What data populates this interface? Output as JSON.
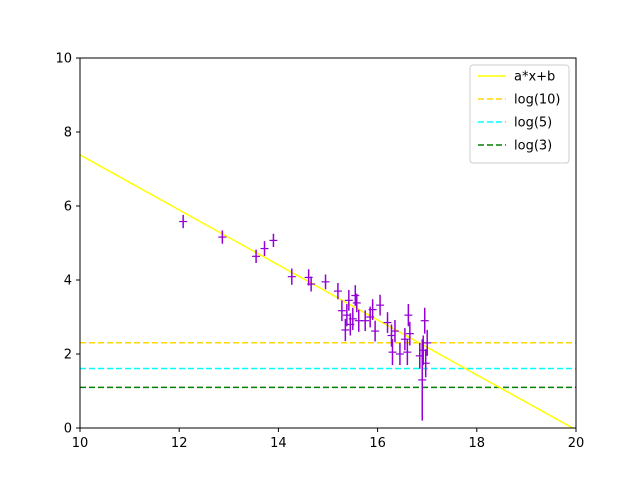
{
  "chart_data": {
    "type": "scatter",
    "title": "",
    "xlabel": "",
    "ylabel": "",
    "xlim": [
      10,
      20
    ],
    "ylim": [
      0,
      10
    ],
    "xticks": [
      "10",
      "12",
      "14",
      "16",
      "18",
      "20"
    ],
    "yticks": [
      "0",
      "2",
      "4",
      "6",
      "8",
      "10"
    ],
    "grid": false,
    "legend_position": "top-right",
    "fit_line": {
      "name": "a*x+b",
      "color": "#ffff00",
      "x": [
        10,
        20
      ],
      "y": [
        7.38,
        -0.05
      ]
    },
    "hlines": [
      {
        "name": "log(10)",
        "value": 2.303,
        "color": "#ffd700"
      },
      {
        "name": "log(5)",
        "value": 1.609,
        "color": "#00ffff"
      },
      {
        "name": "log(3)",
        "value": 1.099,
        "color": "#008000"
      }
    ],
    "points_color": "#9400d3",
    "points": [
      {
        "x": 12.08,
        "y": 5.58,
        "yerr": 0.18
      },
      {
        "x": 12.87,
        "y": 5.16,
        "yerr": 0.18
      },
      {
        "x": 13.55,
        "y": 4.64,
        "yerr": 0.18
      },
      {
        "x": 13.72,
        "y": 4.85,
        "yerr": 0.2
      },
      {
        "x": 13.9,
        "y": 5.07,
        "yerr": 0.18
      },
      {
        "x": 14.27,
        "y": 4.09,
        "yerr": 0.22
      },
      {
        "x": 14.61,
        "y": 4.07,
        "yerr": 0.22
      },
      {
        "x": 14.66,
        "y": 3.89,
        "yerr": 0.2
      },
      {
        "x": 14.95,
        "y": 3.95,
        "yerr": 0.2
      },
      {
        "x": 15.2,
        "y": 3.7,
        "yerr": 0.22
      },
      {
        "x": 15.28,
        "y": 3.17,
        "yerr": 0.28
      },
      {
        "x": 15.35,
        "y": 2.65,
        "yerr": 0.3
      },
      {
        "x": 15.38,
        "y": 3.05,
        "yerr": 0.3
      },
      {
        "x": 15.42,
        "y": 3.45,
        "yerr": 0.28
      },
      {
        "x": 15.45,
        "y": 2.8,
        "yerr": 0.3
      },
      {
        "x": 15.5,
        "y": 2.95,
        "yerr": 0.3
      },
      {
        "x": 15.55,
        "y": 3.58,
        "yerr": 0.28
      },
      {
        "x": 15.58,
        "y": 3.38,
        "yerr": 0.25
      },
      {
        "x": 15.62,
        "y": 2.9,
        "yerr": 0.3
      },
      {
        "x": 15.75,
        "y": 2.9,
        "yerr": 0.28
      },
      {
        "x": 15.85,
        "y": 3.0,
        "yerr": 0.28
      },
      {
        "x": 15.9,
        "y": 3.2,
        "yerr": 0.28
      },
      {
        "x": 15.95,
        "y": 2.62,
        "yerr": 0.28
      },
      {
        "x": 16.05,
        "y": 3.32,
        "yerr": 0.28
      },
      {
        "x": 16.2,
        "y": 2.85,
        "yerr": 0.28
      },
      {
        "x": 16.28,
        "y": 2.5,
        "yerr": 0.3
      },
      {
        "x": 16.3,
        "y": 2.05,
        "yerr": 0.35
      },
      {
        "x": 16.35,
        "y": 2.62,
        "yerr": 0.3
      },
      {
        "x": 16.45,
        "y": 2.0,
        "yerr": 0.3
      },
      {
        "x": 16.55,
        "y": 2.4,
        "yerr": 0.3
      },
      {
        "x": 16.6,
        "y": 2.05,
        "yerr": 0.35
      },
      {
        "x": 16.62,
        "y": 3.05,
        "yerr": 0.3
      },
      {
        "x": 16.65,
        "y": 2.55,
        "yerr": 0.32
      },
      {
        "x": 16.85,
        "y": 1.95,
        "yerr": 0.35
      },
      {
        "x": 16.9,
        "y": 1.3,
        "yerr": 1.1
      },
      {
        "x": 16.92,
        "y": 2.1,
        "yerr": 0.4
      },
      {
        "x": 16.95,
        "y": 2.9,
        "yerr": 0.35
      },
      {
        "x": 16.97,
        "y": 1.75,
        "yerr": 0.38
      },
      {
        "x": 17.0,
        "y": 2.3,
        "yerr": 0.35
      }
    ]
  }
}
